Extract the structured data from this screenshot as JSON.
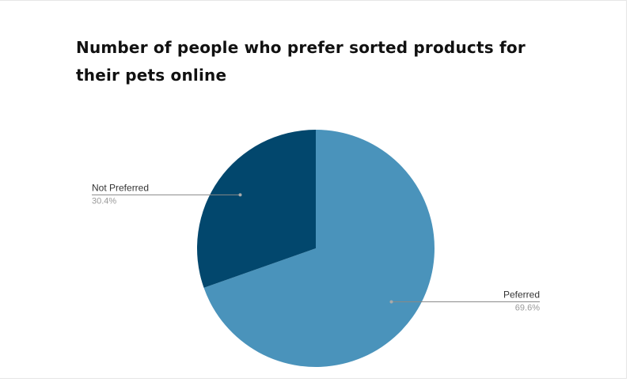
{
  "chart_data": {
    "type": "pie",
    "title": "Number of people who prefer sorted products for their pets online",
    "slices": [
      {
        "label": "Peferred",
        "value": 69.6,
        "display": "69.6%",
        "color": "#4a93bb"
      },
      {
        "label": "Not Preferred",
        "value": 30.4,
        "display": "30.4%",
        "color": "#02476d"
      }
    ],
    "start_angle_deg": 0,
    "direction": "clockwise",
    "legend": "none",
    "label_style": "leader-lines"
  }
}
